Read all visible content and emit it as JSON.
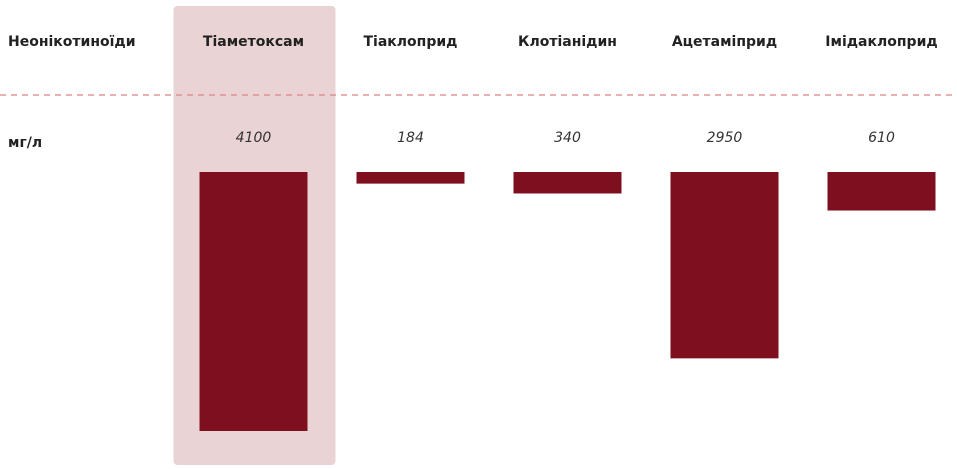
{
  "chart_data": {
    "type": "bar",
    "row_label": "Неонікотиноїди",
    "unit": "мг/л",
    "categories": [
      "Тіаметоксам",
      "Тіаклоприд",
      "Клотіанідин",
      "Ацетаміприд",
      "Імідаклоприд"
    ],
    "values": [
      4100,
      184,
      340,
      2950,
      610
    ],
    "color": "#7d0f1e",
    "highlight": 0
  }
}
